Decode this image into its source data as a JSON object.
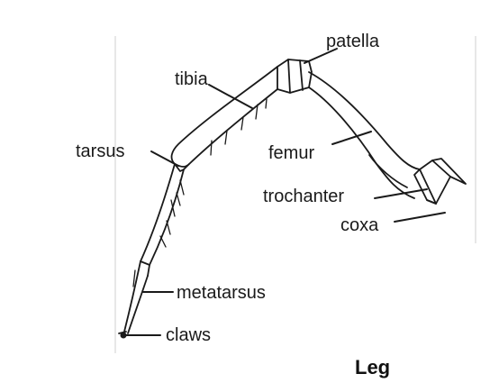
{
  "diagram": {
    "caption": "Leg",
    "labels": {
      "patella": "patella",
      "tibia": "tibia",
      "tarsus": "tarsus",
      "femur": "femur",
      "trochanter": "trochanter",
      "coxa": "coxa",
      "metatarsus": "metatarsus",
      "claws": "claws"
    }
  }
}
